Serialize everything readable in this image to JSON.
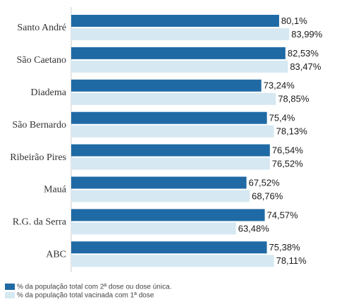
{
  "colors": {
    "series1": "#1f6aa5",
    "series2": "#d6e8f2",
    "axis": "#cccccc"
  },
  "legend": {
    "items": [
      {
        "label": "% da população total com 2ª dose ou dose única.",
        "color": "#1f6aa5"
      },
      {
        "label": "% da população total vacinada com 1ª dose",
        "color": "#d6e8f2"
      }
    ]
  },
  "chart_data": {
    "type": "bar",
    "orientation": "horizontal",
    "categories": [
      "Santo André",
      "São Caetano",
      "Diadema",
      "São Bernardo",
      "Ribeirão Pires",
      "Mauá",
      "R.G. da Serra",
      "ABC"
    ],
    "series": [
      {
        "name": "% da população total com 2ª dose ou dose única.",
        "values": [
          80.1,
          82.53,
          73.24,
          75.4,
          76.54,
          67.52,
          74.57,
          75.38
        ],
        "labels": [
          "80,1%",
          "82,53%",
          "73,24%",
          "75,4%",
          "76,54%",
          "67,52%",
          "74,57%",
          "75,38%"
        ]
      },
      {
        "name": "% da população total vacinada com 1ª dose",
        "values": [
          83.99,
          83.47,
          78.85,
          78.13,
          76.52,
          68.76,
          63.48,
          78.11
        ],
        "labels": [
          "83,99%",
          "83,47%",
          "78,85%",
          "78,13%",
          "76,52%",
          "68,76%",
          "63,48%",
          "78,11%"
        ]
      }
    ],
    "xlim": [
      0,
      100
    ],
    "grid": false,
    "legend_position": "bottom-left"
  }
}
